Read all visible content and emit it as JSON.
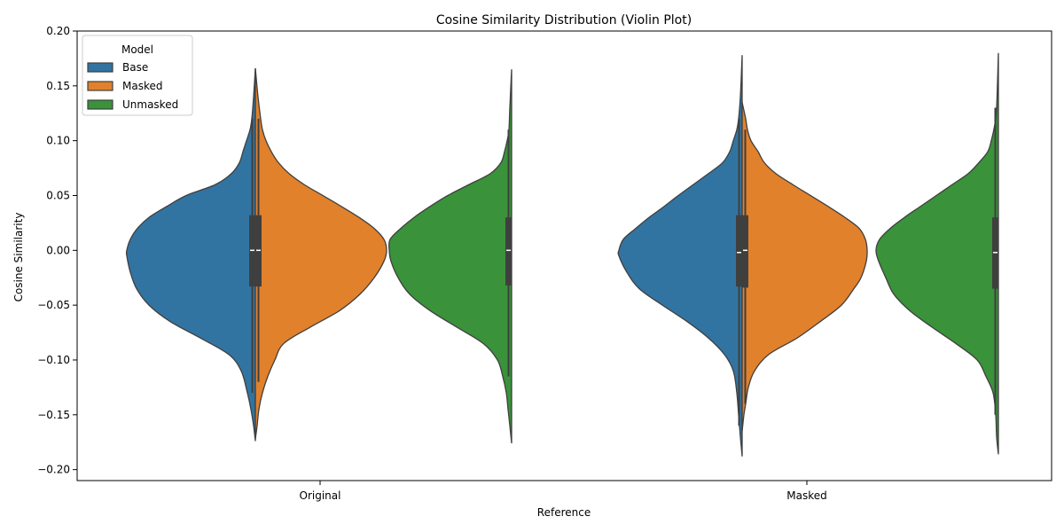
{
  "chart_data": {
    "type": "violin",
    "title": "Cosine Similarity Distribution (Violin Plot)",
    "xlabel": "Reference",
    "ylabel": "Cosine Similarity",
    "ylim": [
      -0.21,
      0.2
    ],
    "yticks": [
      -0.2,
      -0.15,
      -0.1,
      -0.05,
      0.0,
      0.05,
      0.1,
      0.15,
      0.2
    ],
    "ytick_labels": [
      "−0.20",
      "−0.15",
      "−0.10",
      "−0.05",
      "0.00",
      "0.05",
      "0.10",
      "0.15",
      "0.20"
    ],
    "categories": [
      "Original",
      "Masked"
    ],
    "grid": false,
    "legend": {
      "title": "Model",
      "placement": "top-left",
      "entries": [
        "Base",
        "Masked",
        "Unmasked"
      ]
    },
    "series": [
      {
        "name": "Base",
        "color": "#3274a1",
        "side": "left",
        "groups": [
          {
            "category": "Original",
            "min": -0.174,
            "max": 0.166,
            "q1": -0.033,
            "median": 0.0,
            "q3": 0.032,
            "whisker_low": -0.13,
            "whisker_high": 0.12,
            "profile": [
              [
                -0.174,
                0
              ],
              [
                -0.16,
                2
              ],
              [
                -0.145,
                5
              ],
              [
                -0.13,
                9
              ],
              [
                -0.11,
                16
              ],
              [
                -0.095,
                30
              ],
              [
                -0.08,
                62
              ],
              [
                -0.065,
                96
              ],
              [
                -0.05,
                120
              ],
              [
                -0.035,
                134
              ],
              [
                -0.02,
                141
              ],
              [
                -0.005,
                145
              ],
              [
                0.0,
                145
              ],
              [
                0.01,
                141
              ],
              [
                0.02,
                133
              ],
              [
                0.03,
                120
              ],
              [
                0.04,
                100
              ],
              [
                0.05,
                78
              ],
              [
                0.06,
                45
              ],
              [
                0.07,
                27
              ],
              [
                0.08,
                18
              ],
              [
                0.09,
                14
              ],
              [
                0.1,
                10
              ],
              [
                0.11,
                6
              ],
              [
                0.12,
                4
              ],
              [
                0.14,
                2
              ],
              [
                0.166,
                0
              ]
            ]
          },
          {
            "category": "Masked",
            "min": -0.188,
            "max": 0.178,
            "q1": -0.033,
            "median": -0.002,
            "q3": 0.032,
            "whisker_low": -0.16,
            "whisker_high": 0.12,
            "profile": [
              [
                -0.188,
                0
              ],
              [
                -0.17,
                2
              ],
              [
                -0.15,
                4
              ],
              [
                -0.13,
                6
              ],
              [
                -0.11,
                10
              ],
              [
                -0.095,
                20
              ],
              [
                -0.08,
                38
              ],
              [
                -0.065,
                62
              ],
              [
                -0.05,
                90
              ],
              [
                -0.035,
                116
              ],
              [
                -0.02,
                130
              ],
              [
                -0.005,
                139
              ],
              [
                0.0,
                139
              ],
              [
                0.01,
                134
              ],
              [
                0.02,
                120
              ],
              [
                0.03,
                105
              ],
              [
                0.04,
                88
              ],
              [
                0.05,
                72
              ],
              [
                0.06,
                55
              ],
              [
                0.07,
                38
              ],
              [
                0.08,
                22
              ],
              [
                0.09,
                14
              ],
              [
                0.1,
                10
              ],
              [
                0.11,
                6
              ],
              [
                0.12,
                4
              ],
              [
                0.14,
                2
              ],
              [
                0.178,
                0
              ]
            ]
          }
        ]
      },
      {
        "name": "Masked",
        "color": "#e1812c",
        "side": "right",
        "groups": [
          {
            "category": "Original",
            "min": -0.172,
            "max": 0.166,
            "q1": -0.033,
            "median": 0.0,
            "q3": 0.032,
            "whisker_low": -0.12,
            "whisker_high": 0.12,
            "profile": [
              [
                -0.172,
                0
              ],
              [
                -0.16,
                2
              ],
              [
                -0.145,
                4
              ],
              [
                -0.13,
                8
              ],
              [
                -0.115,
                14
              ],
              [
                -0.1,
                22
              ],
              [
                -0.085,
                32
              ],
              [
                -0.07,
                62
              ],
              [
                -0.055,
                95
              ],
              [
                -0.04,
                118
              ],
              [
                -0.025,
                134
              ],
              [
                -0.01,
                145
              ],
              [
                0.0,
                148
              ],
              [
                0.01,
                145
              ],
              [
                0.02,
                134
              ],
              [
                0.03,
                117
              ],
              [
                0.04,
                97
              ],
              [
                0.05,
                76
              ],
              [
                0.06,
                55
              ],
              [
                0.07,
                38
              ],
              [
                0.08,
                26
              ],
              [
                0.09,
                18
              ],
              [
                0.1,
                12
              ],
              [
                0.11,
                8
              ],
              [
                0.12,
                6
              ],
              [
                0.14,
                3
              ],
              [
                0.166,
                0
              ]
            ]
          },
          {
            "category": "Masked",
            "min": -0.165,
            "max": 0.135,
            "q1": -0.034,
            "median": 0.0,
            "q3": 0.032,
            "whisker_low": -0.14,
            "whisker_high": 0.11,
            "profile": [
              [
                -0.165,
                0
              ],
              [
                -0.15,
                2
              ],
              [
                -0.14,
                4
              ],
              [
                -0.125,
                7
              ],
              [
                -0.11,
                14
              ],
              [
                -0.095,
                30
              ],
              [
                -0.08,
                62
              ],
              [
                -0.065,
                88
              ],
              [
                -0.05,
                112
              ],
              [
                -0.035,
                126
              ],
              [
                -0.025,
                134
              ],
              [
                -0.01,
                140
              ],
              [
                0.0,
                141
              ],
              [
                0.01,
                139
              ],
              [
                0.02,
                132
              ],
              [
                0.03,
                116
              ],
              [
                0.04,
                97
              ],
              [
                0.05,
                77
              ],
              [
                0.06,
                57
              ],
              [
                0.07,
                38
              ],
              [
                0.08,
                25
              ],
              [
                0.09,
                18
              ],
              [
                0.1,
                10
              ],
              [
                0.11,
                6
              ],
              [
                0.12,
                4
              ],
              [
                0.135,
                0
              ]
            ]
          }
        ]
      },
      {
        "name": "Unmasked",
        "color": "#3a923a",
        "side": "left",
        "groups": [
          {
            "category": "Original",
            "min": -0.176,
            "max": 0.165,
            "q1": -0.032,
            "median": 0.0,
            "q3": 0.03,
            "whisker_low": -0.115,
            "whisker_high": 0.11,
            "profile": [
              [
                -0.176,
                0
              ],
              [
                -0.16,
                2
              ],
              [
                -0.145,
                4
              ],
              [
                -0.13,
                6
              ],
              [
                -0.115,
                10
              ],
              [
                -0.1,
                16
              ],
              [
                -0.085,
                32
              ],
              [
                -0.07,
                62
              ],
              [
                -0.055,
                92
              ],
              [
                -0.04,
                115
              ],
              [
                -0.025,
                128
              ],
              [
                -0.01,
                136
              ],
              [
                0.0,
                138
              ],
              [
                0.01,
                137
              ],
              [
                0.02,
                125
              ],
              [
                0.03,
                110
              ],
              [
                0.04,
                92
              ],
              [
                0.05,
                72
              ],
              [
                0.06,
                48
              ],
              [
                0.07,
                24
              ],
              [
                0.08,
                12
              ],
              [
                0.09,
                8
              ],
              [
                0.1,
                5
              ],
              [
                0.11,
                3
              ],
              [
                0.13,
                2
              ],
              [
                0.165,
                0
              ]
            ]
          },
          {
            "category": "Masked",
            "min": -0.186,
            "max": 0.18,
            "q1": -0.035,
            "median": -0.002,
            "q3": 0.03,
            "whisker_low": -0.15,
            "whisker_high": 0.13,
            "profile": [
              [
                -0.186,
                0
              ],
              [
                -0.17,
                2
              ],
              [
                -0.15,
                3
              ],
              [
                -0.13,
                6
              ],
              [
                -0.115,
                14
              ],
              [
                -0.1,
                24
              ],
              [
                -0.085,
                48
              ],
              [
                -0.07,
                75
              ],
              [
                -0.055,
                100
              ],
              [
                -0.04,
                118
              ],
              [
                -0.025,
                127
              ],
              [
                -0.01,
                135
              ],
              [
                0.0,
                138
              ],
              [
                0.01,
                134
              ],
              [
                0.02,
                122
              ],
              [
                0.03,
                106
              ],
              [
                0.04,
                88
              ],
              [
                0.05,
                70
              ],
              [
                0.06,
                52
              ],
              [
                0.07,
                34
              ],
              [
                0.08,
                22
              ],
              [
                0.09,
                12
              ],
              [
                0.1,
                8
              ],
              [
                0.115,
                4
              ],
              [
                0.13,
                2
              ],
              [
                0.18,
                0
              ]
            ]
          }
        ]
      }
    ]
  }
}
